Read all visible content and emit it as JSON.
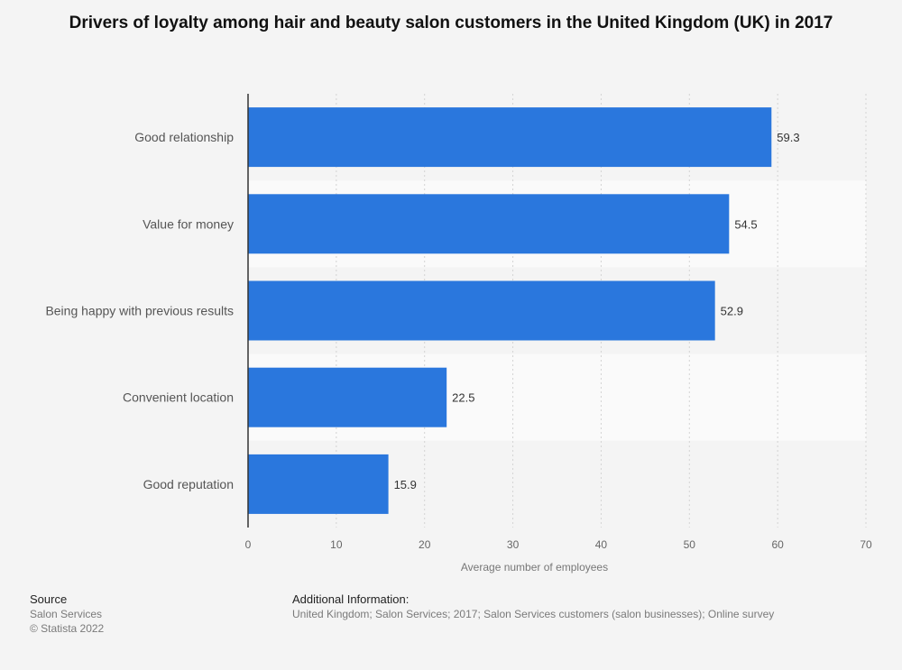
{
  "chart_data": {
    "type": "bar",
    "orientation": "horizontal",
    "title": "Drivers of loyalty among hair and beauty salon customers in the United Kingdom (UK) in 2017",
    "categories": [
      "Good relationship",
      "Value for money",
      "Being happy with previous results",
      "Convenient location",
      "Good reputation"
    ],
    "values": [
      59.3,
      54.5,
      52.9,
      22.5,
      15.9
    ],
    "xlabel": "Average number of employees",
    "ylabel": "",
    "xlim": [
      0,
      70
    ],
    "xticks": [
      0,
      10,
      20,
      30,
      40,
      50,
      60,
      70
    ],
    "grid": true,
    "data_labels": true,
    "bar_color": "#2a77dd"
  },
  "footer": {
    "source_heading": "Source",
    "source_lines": [
      "Salon Services",
      "© Statista 2022"
    ],
    "info_heading": "Additional Information:",
    "info_text": "United Kingdom; Salon Services; 2017; Salon Services customers (salon businesses); Online survey"
  }
}
